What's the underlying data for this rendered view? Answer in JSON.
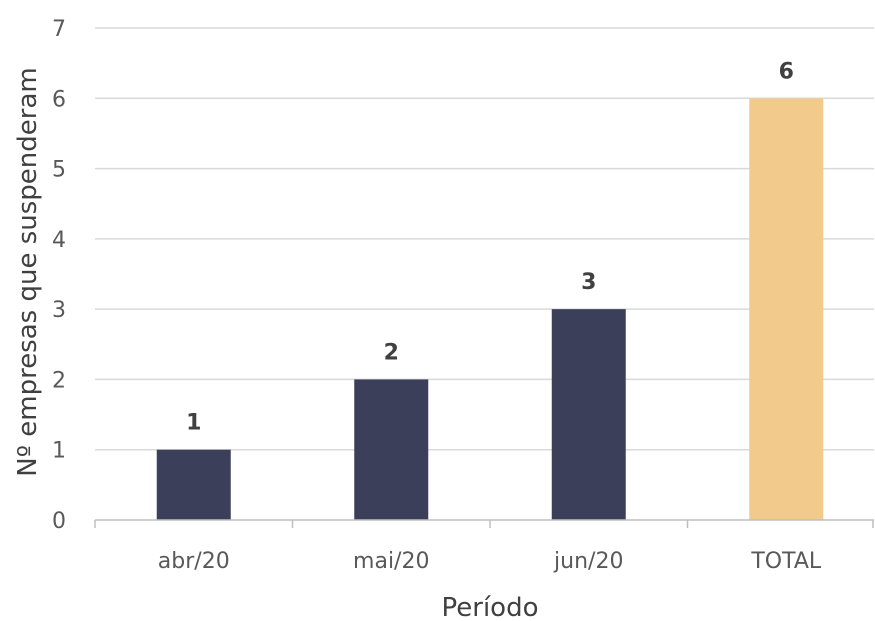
{
  "chart_data": {
    "type": "bar",
    "categories": [
      "abr/20",
      "mai/20",
      "jun/20",
      "TOTAL"
    ],
    "values": [
      1,
      2,
      3,
      6
    ],
    "data_labels": [
      "1",
      "2",
      "3",
      "6"
    ],
    "bar_colors": [
      "#3c3f5a",
      "#3c3f5a",
      "#3c3f5a",
      "#f2cb8c"
    ],
    "title": "",
    "xlabel": "Período",
    "ylabel": "Nº empresas que suspenderam",
    "ylim": [
      0,
      7
    ],
    "yticks": [
      0,
      1,
      2,
      3,
      4,
      5,
      6,
      7
    ],
    "grid": true,
    "legend": "none"
  },
  "colors": {
    "grid": "#d9d9d9",
    "axis": "#bfbfbf",
    "tick_text": "#595959",
    "label_text": "#404040"
  }
}
